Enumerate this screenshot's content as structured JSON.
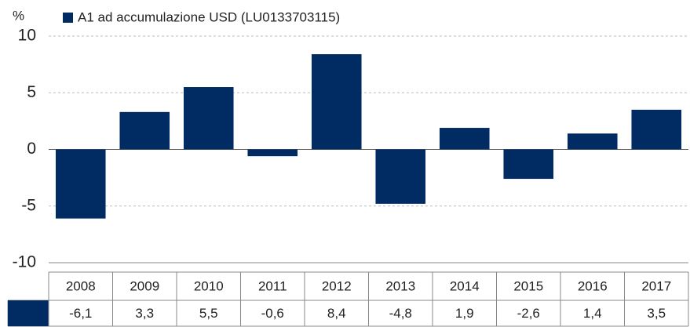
{
  "chart_data": {
    "type": "bar",
    "y_unit": "%",
    "categories": [
      "2008",
      "2009",
      "2010",
      "2011",
      "2012",
      "2013",
      "2014",
      "2015",
      "2016",
      "2017"
    ],
    "series": [
      {
        "name": "A1 ad accumulazione USD (LU0133703115)",
        "color": "#002b63",
        "values": [
          -6.1,
          3.3,
          5.5,
          -0.6,
          8.4,
          -4.8,
          1.9,
          -2.6,
          1.4,
          3.5
        ],
        "value_labels": [
          "-6,1",
          "3,3",
          "5,5",
          "-0,6",
          "8,4",
          "-4,8",
          "1,9",
          "-2,6",
          "1,4",
          "3,5"
        ]
      }
    ],
    "ylim": [
      -10,
      10
    ],
    "yticks": [
      -10,
      -5,
      0,
      5,
      10
    ],
    "grid": true
  }
}
